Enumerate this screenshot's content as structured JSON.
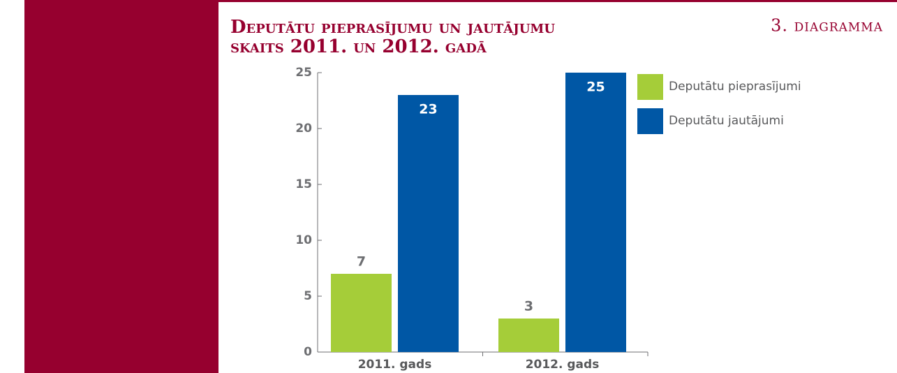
{
  "chart_data": {
    "type": "bar",
    "title_lines": [
      "Deputātu pieprasījumu un jautājumu",
      "skaits 2011. un 2012. gadā"
    ],
    "label": "3. diagramma",
    "categories": [
      "2011. gads",
      "2012. gads"
    ],
    "series": [
      {
        "name": "Deputātu pieprasījumi",
        "color": "#a5cd39",
        "values": [
          7,
          3
        ]
      },
      {
        "name": "Deputātu jautājumi",
        "color": "#0057a5",
        "values": [
          23,
          25
        ]
      }
    ],
    "ylim": [
      0,
      25
    ],
    "yticks": [
      0,
      5,
      10,
      15,
      20,
      25
    ],
    "grid": false,
    "legend": "right"
  }
}
